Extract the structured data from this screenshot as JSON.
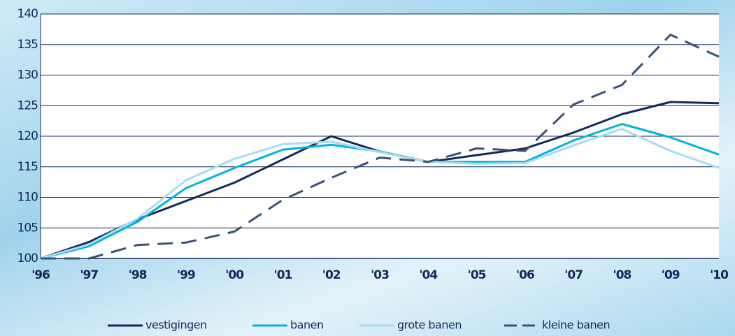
{
  "chart_data": {
    "type": "line",
    "categories": [
      "'96",
      "'97",
      "'98",
      "'99",
      "'00",
      "'01",
      "'02",
      "'03",
      "'04",
      "'05",
      "'06",
      "'07",
      "'08",
      "'09",
      "'10"
    ],
    "series": [
      {
        "name": "vestigingen",
        "color": "#14285a",
        "dashed": false,
        "values": [
          100,
          102.7,
          106.4,
          109.4,
          112.4,
          116.2,
          120,
          117.5,
          115.8,
          116.9,
          118,
          120.6,
          123.6,
          125.6,
          125.4
        ]
      },
      {
        "name": "banen",
        "color": "#00b4e0",
        "dashed": false,
        "values": [
          100,
          102,
          106,
          111.5,
          114.8,
          117.8,
          118.6,
          117.5,
          115.8,
          115.8,
          115.8,
          119.3,
          122,
          119.8,
          117
        ]
      },
      {
        "name": "grote banen",
        "color": "#a8dcf0",
        "dashed": false,
        "values": [
          100,
          102.3,
          106.5,
          112.8,
          116.3,
          118.7,
          119.1,
          117.4,
          115.8,
          115.5,
          115.6,
          118.5,
          121.2,
          117.6,
          114.8
        ]
      },
      {
        "name": "kleine banen",
        "color": "#3a5275",
        "dashed": true,
        "values": [
          100,
          100,
          102.2,
          102.6,
          104.4,
          109.6,
          113.2,
          116.5,
          115.8,
          118,
          117.6,
          125.2,
          128.4,
          136.6,
          133
        ]
      }
    ],
    "ylim": [
      100,
      140
    ],
    "yticks": [
      100,
      105,
      110,
      115,
      120,
      125,
      130,
      135,
      140
    ],
    "grid": true,
    "legend": "bottom"
  }
}
